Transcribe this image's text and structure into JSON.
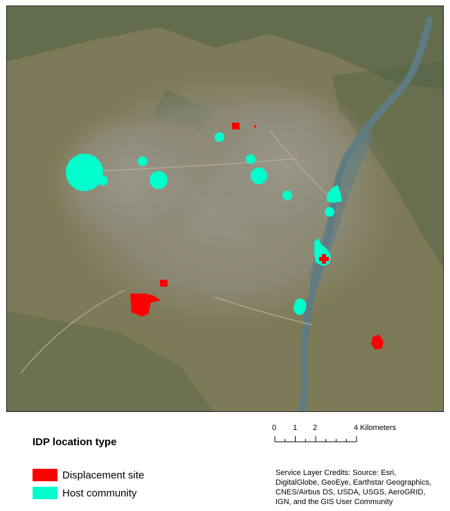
{
  "map": {
    "basemap": "satellite imagery",
    "colors": {
      "displacement_site": "#ff0000",
      "host_community": "#00ffcc",
      "land": "#7d7a58",
      "urban": "#8e8b79",
      "river": "#5f7c83",
      "vegetation": "#4f6145"
    }
  },
  "legend": {
    "title": "IDP location type",
    "items": [
      {
        "label": "Displacement site",
        "color": "#ff0000"
      },
      {
        "label": "Host community",
        "color": "#00ffcc"
      }
    ]
  },
  "scale": {
    "labels": [
      "0",
      "1",
      "2",
      "4 Kilometers"
    ]
  },
  "credits": {
    "lines": [
      "Service Layer Credits:  Source: Esri,",
      "DigitalGlobe, GeoEye, Earthstar Geographics,",
      "CNES/Airbus DS, USDA, USGS, AeroGRID,",
      "IGN, and the GIS User Community"
    ]
  }
}
